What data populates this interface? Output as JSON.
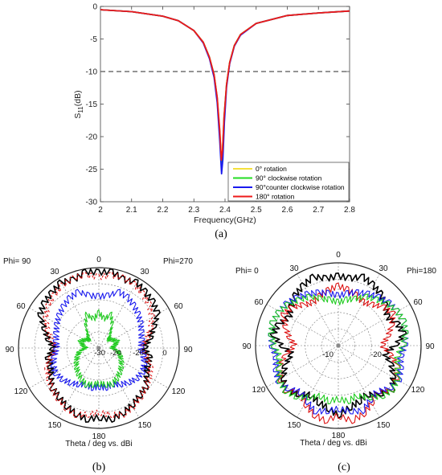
{
  "chart_data": [
    {
      "type": "line",
      "panel": "(a)",
      "caption": "(a)",
      "xlabel": "Frequency(GHz)",
      "ylabel": "S11(dB)",
      "ylabel_main": "S",
      "ylabel_sub": "11",
      "ylabel_unit": "(dB)",
      "xlim": [
        2,
        2.8
      ],
      "ylim": [
        -30,
        0
      ],
      "xticks": [
        "2",
        "2.1",
        "2.2",
        "2.3",
        "2.4",
        "2.5",
        "2.6",
        "2.7",
        "2.8"
      ],
      "yticks": [
        "0",
        "-5",
        "-10",
        "-15",
        "-20",
        "-25",
        "-30"
      ],
      "reference_line": {
        "y": -10,
        "style": "dashed"
      },
      "legend_position": "bottom-right",
      "series": [
        {
          "name": "0° rotation",
          "color": "#f4e03c",
          "x": [
            2.0,
            2.1,
            2.2,
            2.25,
            2.3,
            2.33,
            2.35,
            2.365,
            2.375,
            2.383,
            2.388,
            2.392,
            2.397,
            2.405,
            2.415,
            2.43,
            2.45,
            2.5,
            2.6,
            2.7,
            2.8
          ],
          "y": [
            -0.5,
            -0.8,
            -1.5,
            -2.2,
            -3.7,
            -5.5,
            -7.8,
            -10.5,
            -14.0,
            -19.0,
            -23.5,
            -22.0,
            -17.0,
            -12.0,
            -8.6,
            -6.0,
            -4.3,
            -2.6,
            -1.4,
            -1.0,
            -0.7
          ]
        },
        {
          "name": "90° clockwise rotation",
          "color": "#22dd22",
          "x": [
            2.0,
            2.1,
            2.2,
            2.25,
            2.3,
            2.33,
            2.35,
            2.365,
            2.375,
            2.383,
            2.388,
            2.392,
            2.397,
            2.405,
            2.415,
            2.43,
            2.45,
            2.5,
            2.6,
            2.7,
            2.8
          ],
          "y": [
            -0.5,
            -0.8,
            -1.5,
            -2.2,
            -3.7,
            -5.5,
            -7.8,
            -10.5,
            -14.2,
            -19.5,
            -24.0,
            -22.3,
            -17.1,
            -12.0,
            -8.6,
            -6.0,
            -4.3,
            -2.6,
            -1.4,
            -1.0,
            -0.7
          ]
        },
        {
          "name": "90°counter clockwise rotation",
          "color": "#1a1aee",
          "x": [
            2.0,
            2.1,
            2.2,
            2.25,
            2.3,
            2.33,
            2.35,
            2.365,
            2.375,
            2.383,
            2.389,
            2.393,
            2.398,
            2.405,
            2.415,
            2.43,
            2.45,
            2.5,
            2.6,
            2.7,
            2.8
          ],
          "y": [
            -0.5,
            -0.8,
            -1.5,
            -2.2,
            -3.7,
            -5.6,
            -8.0,
            -10.9,
            -14.8,
            -20.5,
            -25.7,
            -23.5,
            -17.8,
            -12.4,
            -8.8,
            -6.1,
            -4.4,
            -2.6,
            -1.4,
            -1.0,
            -0.7
          ]
        },
        {
          "name": "180° rotation",
          "color": "#ee1a1a",
          "x": [
            2.0,
            2.1,
            2.2,
            2.25,
            2.3,
            2.33,
            2.35,
            2.365,
            2.375,
            2.383,
            2.388,
            2.392,
            2.397,
            2.405,
            2.415,
            2.43,
            2.45,
            2.5,
            2.6,
            2.7,
            2.8
          ],
          "y": [
            -0.5,
            -0.8,
            -1.5,
            -2.2,
            -3.7,
            -5.5,
            -7.8,
            -10.5,
            -14.0,
            -19.0,
            -23.6,
            -22.1,
            -17.0,
            -12.0,
            -8.6,
            -6.0,
            -4.3,
            -2.6,
            -1.4,
            -1.0,
            -0.7
          ]
        }
      ]
    },
    {
      "type": "polar",
      "panel": "(b)",
      "caption": "(b)",
      "phi_left": "Phi= 90",
      "phi_right": "Phi=270",
      "footer": "Theta / deg vs. dBi",
      "theta_labels": [
        "0",
        "30",
        "60",
        "90",
        "120",
        "150",
        "180",
        "150",
        "120",
        "90",
        "60",
        "30"
      ],
      "radial_labels_left": [
        "-30",
        "-20"
      ],
      "radial_labels_right": [
        "-20",
        "0"
      ],
      "rlim": [
        -40,
        10
      ],
      "rticks": [
        -30,
        -20,
        -10,
        0,
        10
      ],
      "series": [
        {
          "color": "#000000",
          "style": "solid",
          "step_deg": 10,
          "r": [
            7,
            8,
            5,
            7,
            5,
            4,
            2,
            -4,
            -8,
            -12,
            -8,
            -8,
            -6,
            -2,
            -1,
            1,
            3,
            5,
            3,
            5,
            3,
            1,
            -1,
            -2,
            -6,
            -8,
            -8,
            -12,
            -8,
            -4,
            2,
            4,
            5,
            7,
            5,
            8
          ]
        },
        {
          "color": "#dd1111",
          "style": "dashed",
          "step_deg": 10,
          "r": [
            4,
            6,
            6,
            5,
            3,
            1,
            -2,
            -6,
            -10,
            -14,
            -10,
            -6,
            -4,
            -2,
            0,
            2,
            4,
            2,
            0,
            2,
            4,
            2,
            0,
            -2,
            -4,
            -6,
            -10,
            -14,
            -10,
            -6,
            -2,
            1,
            3,
            5,
            6,
            6
          ]
        },
        {
          "color": "#1a1aee",
          "style": "solid",
          "step_deg": 10,
          "r": [
            -8,
            -7,
            -3,
            -4,
            -6,
            -8,
            -10,
            -12,
            -13,
            -14,
            -12,
            -10,
            -9,
            -10,
            -12,
            -14,
            -16,
            -15,
            -16,
            -15,
            -16,
            -14,
            -12,
            -10,
            -9,
            -10,
            -12,
            -14,
            -13,
            -12,
            -10,
            -8,
            -6,
            -4,
            -3,
            -7
          ]
        },
        {
          "color": "#22cc22",
          "style": "solid",
          "step_deg": 10,
          "r": [
            -18,
            -22,
            -18,
            -24,
            -30,
            -32,
            -30,
            -28,
            -30,
            -32,
            -28,
            -26,
            -24,
            -22,
            -20,
            -18,
            -16,
            -17,
            -18,
            -17,
            -16,
            -18,
            -20,
            -22,
            -24,
            -26,
            -28,
            -32,
            -30,
            -28,
            -30,
            -32,
            -30,
            -24,
            -18,
            -22
          ]
        }
      ]
    },
    {
      "type": "polar",
      "panel": "(c)",
      "caption": "(c)",
      "phi_left": "Phi=  0",
      "phi_right": "Phi=180",
      "footer": "Theta / deg vs. dBi",
      "theta_labels": [
        "0",
        "30",
        "60",
        "90",
        "120",
        "150",
        "180",
        "150",
        "120",
        "90",
        "60",
        "30"
      ],
      "radial_labels_left": [
        "-10"
      ],
      "radial_labels_right": [
        "-20"
      ],
      "rlim": [
        -40,
        10
      ],
      "rticks": [
        -30,
        -20,
        -10,
        0,
        10
      ],
      "series": [
        {
          "color": "#000000",
          "style": "solid",
          "step_deg": 10,
          "r": [
            2,
            1,
            4,
            2,
            0,
            -3,
            -6,
            -2,
            0,
            -6,
            -12,
            -6,
            -2,
            2,
            -2,
            -6,
            -4,
            -2,
            2,
            -2,
            -4,
            -6,
            -2,
            2,
            -2,
            -6,
            -12,
            -6,
            0,
            -2,
            -6,
            -3,
            0,
            2,
            4,
            1
          ]
        },
        {
          "color": "#dd1111",
          "style": "solid",
          "step_deg": 10,
          "r": [
            -4,
            -6,
            -8,
            -10,
            -8,
            -4,
            -2,
            -6,
            -10,
            -14,
            -8,
            -2,
            0,
            2,
            -4,
            0,
            4,
            6,
            2,
            6,
            4,
            0,
            -4,
            2,
            0,
            -2,
            -8,
            -14,
            -10,
            -6,
            -2,
            -4,
            -8,
            -10,
            -8,
            -6
          ]
        },
        {
          "color": "#1a1aee",
          "style": "solid",
          "step_deg": 10,
          "r": [
            -10,
            -8,
            -6,
            -4,
            -2,
            0,
            1,
            2,
            1,
            0,
            -2,
            0,
            2,
            0,
            -4,
            -2,
            2,
            0,
            -2,
            0,
            2,
            -2,
            -4,
            0,
            2,
            0,
            -2,
            0,
            1,
            2,
            1,
            0,
            -2,
            -4,
            -6,
            -8
          ]
        },
        {
          "color": "#22cc22",
          "style": "solid",
          "step_deg": 10,
          "r": [
            -14,
            -12,
            -10,
            -6,
            -4,
            -1,
            1,
            2,
            1,
            -1,
            -4,
            -2,
            1,
            2,
            0,
            -4,
            -8,
            -6,
            -8,
            -6,
            -8,
            -4,
            0,
            2,
            1,
            -2,
            -4,
            -1,
            1,
            2,
            1,
            -1,
            -4,
            -6,
            -10,
            -12
          ]
        }
      ]
    }
  ]
}
